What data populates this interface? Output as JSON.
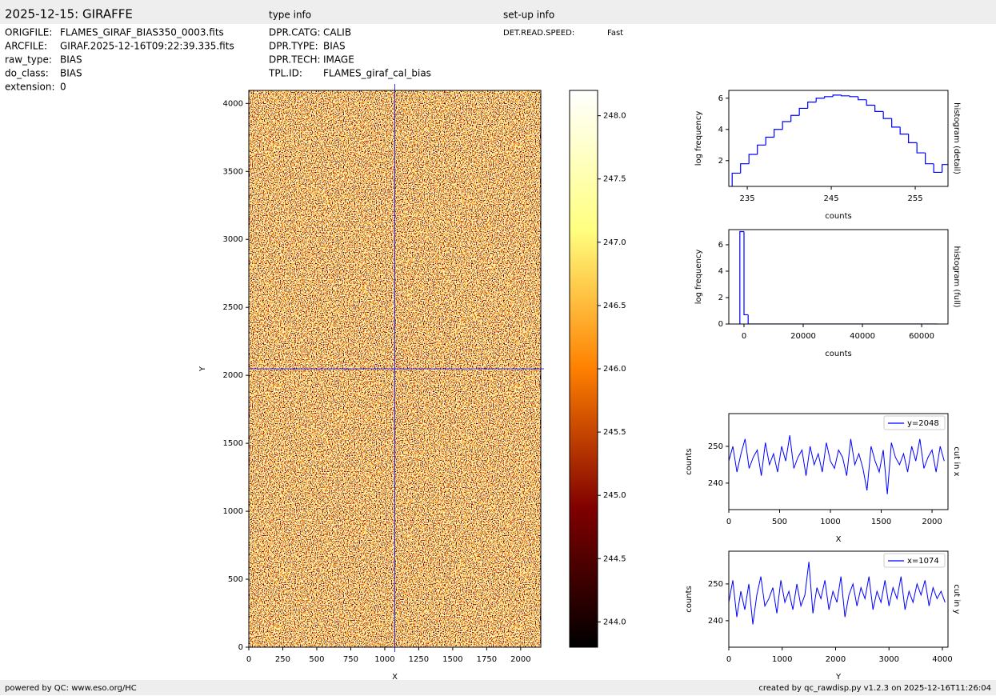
{
  "header": {
    "title": "2025-12-15: GIRAFFE",
    "type_info_title": "type info",
    "setup_info_title": "set-up info",
    "file_info": [
      {
        "key": "ORIGFILE:",
        "value": "FLAMES_GIRAF_BIAS350_0003.fits"
      },
      {
        "key": "ARCFILE:",
        "value": "GIRAF.2025-12-16T09:22:39.335.fits"
      },
      {
        "key": "raw_type:",
        "value": "BIAS"
      },
      {
        "key": "do_class:",
        "value": "BIAS"
      },
      {
        "key": "extension:",
        "value": "0"
      }
    ],
    "type_info": [
      {
        "key": "DPR.CATG:",
        "value": "CALIB"
      },
      {
        "key": "DPR.TYPE:",
        "value": "BIAS"
      },
      {
        "key": "DPR.TECH:",
        "value": "IMAGE"
      },
      {
        "key": "TPL.ID:",
        "value": "FLAMES_giraf_cal_bias"
      }
    ],
    "setup_info": [
      {
        "key": "DET.READ.SPEED:",
        "value": "Fast"
      }
    ]
  },
  "footer": {
    "left": "powered by QC: www.eso.org/HC",
    "right": "created by qc_rawdisp.py v1.2.3 on 2025-12-16T11:26:04"
  },
  "chart_data": [
    {
      "type": "image",
      "xlabel": "X",
      "ylabel": "Y",
      "xlim": [
        0,
        2148
      ],
      "ylim": [
        0,
        4096
      ],
      "xticks": [
        0,
        250,
        500,
        750,
        1000,
        1250,
        1500,
        1750,
        2000
      ],
      "yticks": [
        0,
        500,
        1000,
        1500,
        2000,
        2500,
        3000,
        3500,
        4000
      ],
      "crosshair_x": 1074,
      "crosshair_y": 2048,
      "crosshair_color": "#0000ff",
      "colormap": "afmhot",
      "clim": [
        243.8,
        248.2
      ],
      "cticks": [
        {
          "value": 244,
          "label": "244.0"
        },
        {
          "value": 244.5,
          "label": "244.5"
        },
        {
          "value": 245,
          "label": "245.0"
        },
        {
          "value": 245.5,
          "label": "245.5"
        },
        {
          "value": 246,
          "label": "246.0"
        },
        {
          "value": 246.5,
          "label": "246.5"
        },
        {
          "value": 247,
          "label": "247.0"
        },
        {
          "value": 247.5,
          "label": "247.5"
        },
        {
          "value": 248,
          "label": "248.0"
        }
      ]
    },
    {
      "type": "histogram",
      "xlabel": "counts",
      "ylabel": "log frequency",
      "right_label": "histogram (detail)",
      "color": "#0000ff",
      "xlim": [
        232.8,
        258.9
      ],
      "ylim": [
        0.35,
        6.5
      ],
      "xticks": [
        235,
        245,
        255
      ],
      "yticks": [
        2,
        4,
        6
      ],
      "bins": [
        233.2,
        234.2,
        235.2,
        236.2,
        237.2,
        238.2,
        239.2,
        240.2,
        241.2,
        242.2,
        243.2,
        244.2,
        245.2,
        246.2,
        247.2,
        248.2,
        249.2,
        250.2,
        251.2,
        252.2,
        253.2,
        254.2,
        255.2,
        256.2,
        257.2,
        258.2,
        259.2
      ],
      "counts": [
        1.2,
        1.8,
        2.4,
        3.0,
        3.5,
        4.0,
        4.5,
        4.9,
        5.35,
        5.75,
        6.0,
        6.1,
        6.2,
        6.15,
        6.1,
        5.9,
        5.55,
        5.15,
        4.7,
        4.15,
        3.7,
        3.15,
        2.5,
        1.8,
        1.25,
        1.75
      ]
    },
    {
      "type": "histogram",
      "xlabel": "counts",
      "ylabel": "log frequency",
      "right_label": "histogram (full)",
      "color": "#0000ff",
      "xlim": [
        -5135,
        68900
      ],
      "ylim": [
        0,
        7.15
      ],
      "xticks": [
        0,
        20000,
        40000,
        60000
      ],
      "yticks": [
        0,
        2,
        4,
        6
      ],
      "bins": [
        -1400,
        0,
        1400,
        65536
      ],
      "counts": [
        7.0,
        0.7,
        0
      ]
    },
    {
      "type": "line",
      "xlabel": "X",
      "ylabel": "counts",
      "right_label": "cut in x",
      "legend": "upper right",
      "xlim": [
        0,
        2157
      ],
      "ylim": [
        232.8,
        258.9
      ],
      "xticks": [
        0,
        500,
        1000,
        1500,
        2000
      ],
      "yticks": [
        240,
        250
      ],
      "x": [
        0,
        40,
        80,
        120,
        160,
        200,
        240,
        280,
        320,
        360,
        400,
        440,
        480,
        520,
        560,
        600,
        640,
        680,
        720,
        760,
        800,
        840,
        880,
        920,
        960,
        1000,
        1040,
        1080,
        1120,
        1160,
        1200,
        1240,
        1280,
        1320,
        1360,
        1400,
        1440,
        1480,
        1520,
        1560,
        1600,
        1640,
        1680,
        1720,
        1760,
        1800,
        1840,
        1880,
        1920,
        1960,
        2000,
        2040,
        2080,
        2120
      ],
      "series": [
        {
          "name": "y=2048",
          "color": "#0000ff",
          "values": [
            246,
            250,
            243,
            248,
            252,
            244,
            247,
            249,
            242,
            251,
            245,
            248,
            243,
            250,
            246,
            253,
            244,
            247,
            249,
            242,
            250,
            245,
            248,
            243,
            251,
            246,
            244,
            249,
            247,
            242,
            252,
            245,
            248,
            244,
            238,
            250,
            246,
            243,
            249,
            237,
            251,
            247,
            245,
            248,
            243,
            250,
            246,
            252,
            244,
            247,
            249,
            243,
            250,
            246
          ]
        }
      ]
    },
    {
      "type": "line",
      "xlabel": "Y",
      "ylabel": "counts",
      "right_label": "cut in y",
      "legend": "upper right",
      "xlim": [
        0,
        4105
      ],
      "ylim": [
        232.8,
        258.9
      ],
      "xticks": [
        0,
        1000,
        2000,
        3000,
        4000
      ],
      "yticks": [
        240,
        250
      ],
      "x": [
        0,
        75,
        150,
        225,
        300,
        375,
        450,
        525,
        600,
        675,
        750,
        825,
        900,
        975,
        1050,
        1125,
        1200,
        1275,
        1350,
        1425,
        1500,
        1575,
        1650,
        1725,
        1800,
        1875,
        1950,
        2025,
        2100,
        2175,
        2250,
        2325,
        2400,
        2475,
        2550,
        2625,
        2700,
        2775,
        2850,
        2925,
        3000,
        3075,
        3150,
        3225,
        3300,
        3375,
        3450,
        3525,
        3600,
        3675,
        3750,
        3825,
        3900,
        3975,
        4050
      ],
      "series": [
        {
          "name": "x=1074",
          "color": "#0000ff",
          "values": [
            245,
            251,
            241,
            248,
            243,
            250,
            239,
            247,
            252,
            244,
            246,
            249,
            242,
            251,
            245,
            248,
            243,
            250,
            244,
            247,
            256,
            242,
            249,
            246,
            251,
            243,
            248,
            245,
            252,
            241,
            247,
            250,
            244,
            249,
            246,
            252,
            243,
            248,
            245,
            251,
            244,
            249,
            246,
            252,
            243,
            248,
            245,
            250,
            247,
            251,
            244,
            249,
            246,
            248,
            245
          ]
        }
      ]
    }
  ]
}
